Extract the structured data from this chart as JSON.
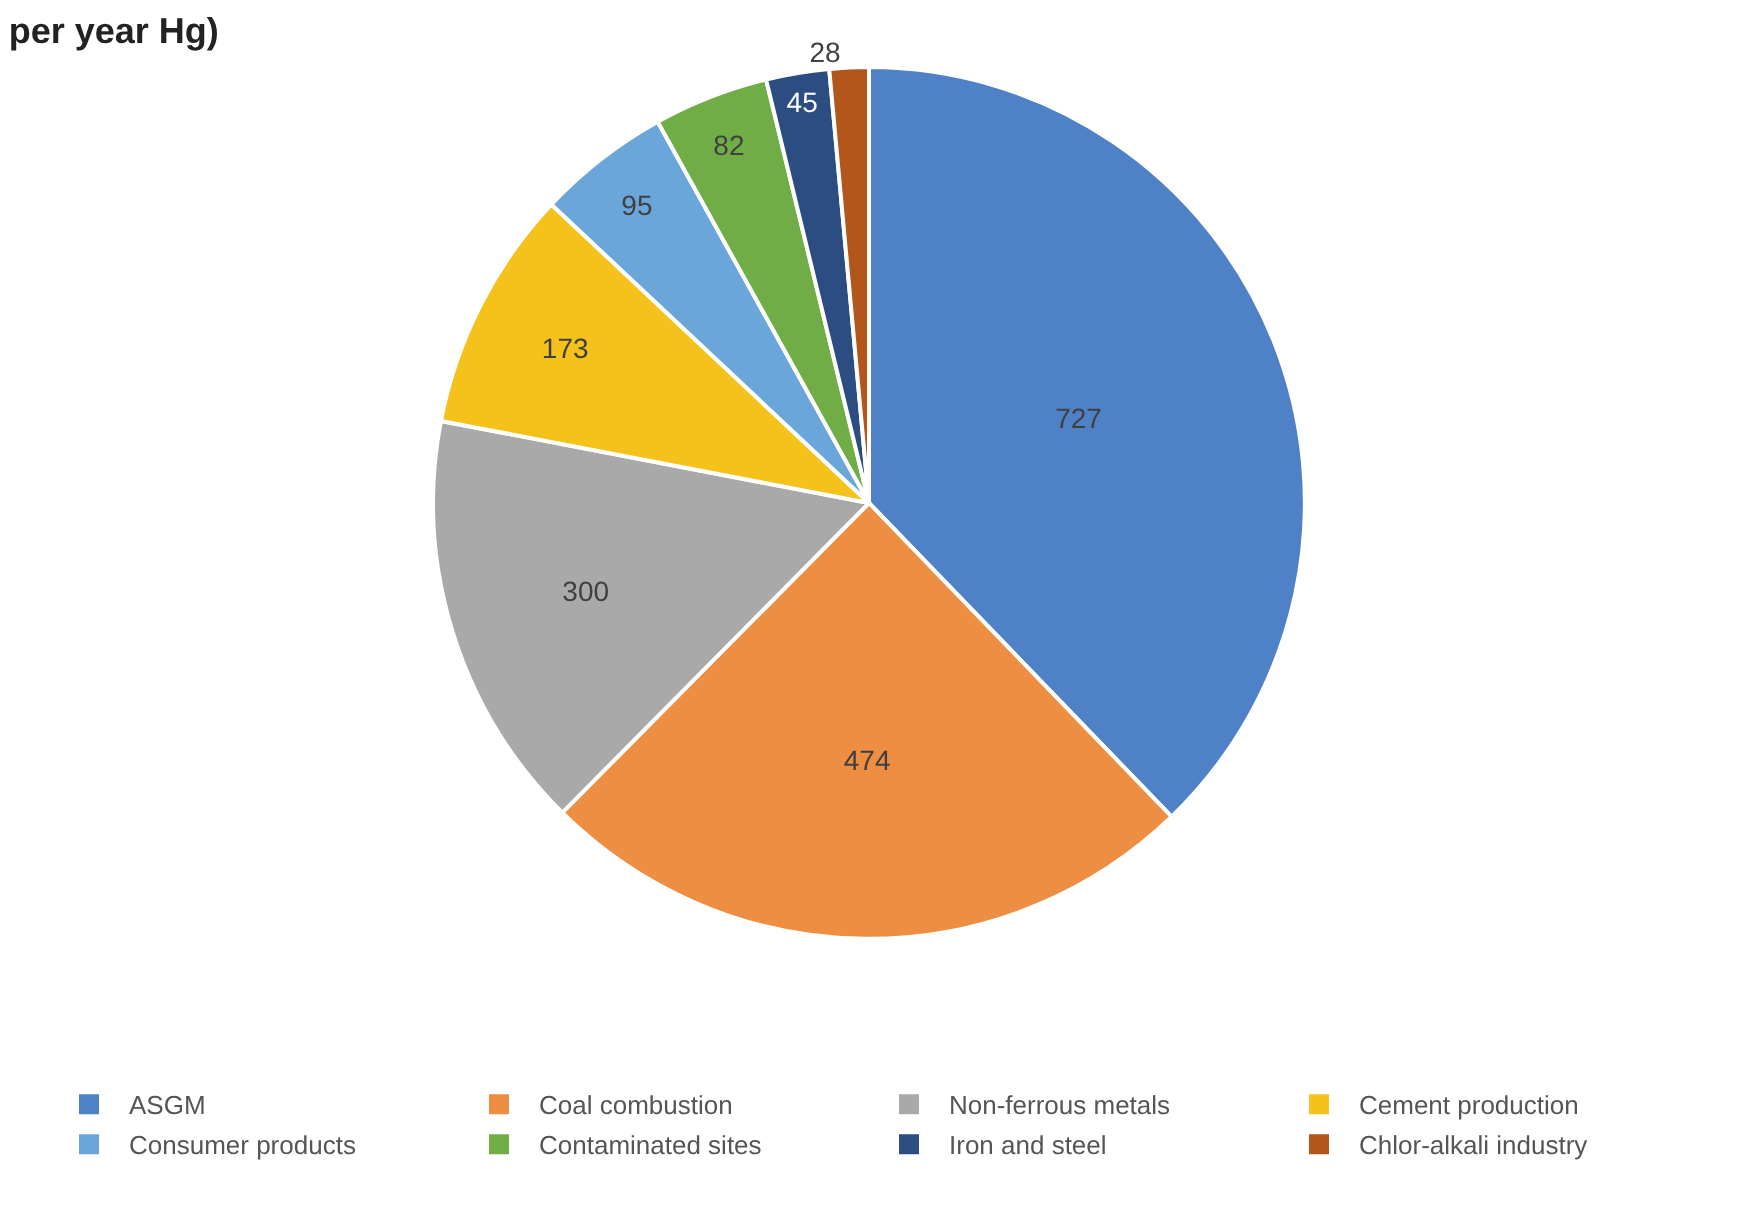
{
  "chart_data": {
    "type": "pie",
    "title": "per year Hg)",
    "categories": [
      "ASGM",
      "Coal combustion",
      "Non-ferrous metals",
      "Cement production",
      "Consumer products",
      "Contaminated sites",
      "Iron and steel",
      "Chlor-alkali industry"
    ],
    "values": [
      727,
      474,
      300,
      173,
      95,
      82,
      45,
      28
    ],
    "colors": [
      "#4f81c6",
      "#ed8e42",
      "#a9a9a9",
      "#f5c21b",
      "#6aa6d9",
      "#70ad47",
      "#2b4d82",
      "#b3561c"
    ],
    "data_labels": true,
    "legend": "bottom"
  }
}
